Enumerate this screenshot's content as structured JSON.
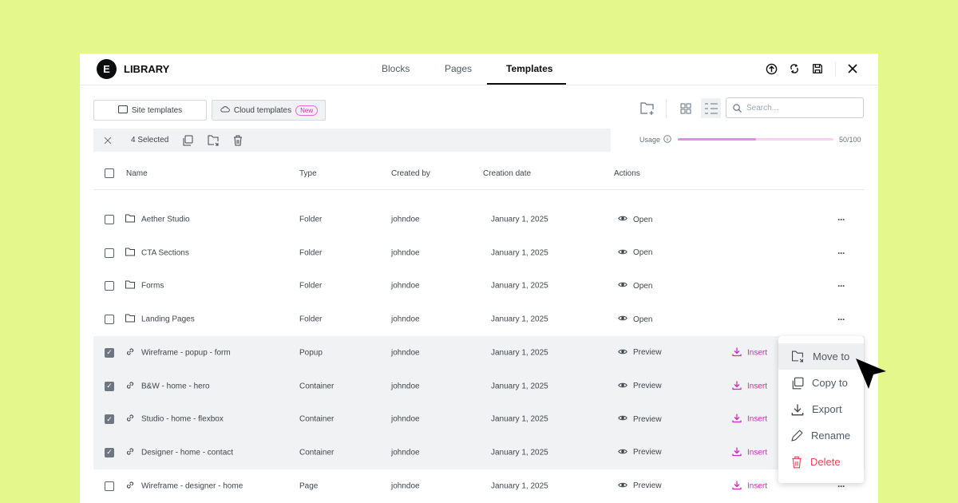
{
  "header": {
    "title": "LIBRARY",
    "tabs": [
      {
        "label": "Blocks"
      },
      {
        "label": "Pages"
      },
      {
        "label": "Templates",
        "active": true
      }
    ],
    "icons": [
      "upload-icon",
      "sync-icon",
      "save-icon",
      "close-icon"
    ]
  },
  "filters": {
    "site_templates": "Site templates",
    "cloud_templates": "Cloud templates",
    "new_badge": "New"
  },
  "toolbar": {
    "search_placeholder": "Search...",
    "view": "list"
  },
  "selection": {
    "label": "4 Selected"
  },
  "usage": {
    "label": "Usage",
    "value": "50/100",
    "fraction": 0.5
  },
  "columns": [
    "Name",
    "Type",
    "Created by",
    "Creation date",
    "Actions"
  ],
  "rows": [
    {
      "name": "Aether Studio",
      "type": "Folder",
      "by": "johndoe",
      "date": "January 1, 2025",
      "action": "Open",
      "checked": false,
      "kind": "folder"
    },
    {
      "name": "CTA Sections",
      "type": "Folder",
      "by": "johndoe",
      "date": "January 1, 2025",
      "action": "Open",
      "checked": false,
      "kind": "folder"
    },
    {
      "name": "Forms",
      "type": "Folder",
      "by": "johndoe",
      "date": "January 1, 2025",
      "action": "Open",
      "checked": false,
      "kind": "folder"
    },
    {
      "name": "Landing Pages",
      "type": "Folder",
      "by": "johndoe",
      "date": "January 1, 2025",
      "action": "Open",
      "checked": false,
      "kind": "folder"
    },
    {
      "name": "Wireframe - popup - form",
      "type": "Popup",
      "by": "johndoe",
      "date": "January 1, 2025",
      "action": "Preview",
      "insert": "Insert",
      "checked": true,
      "kind": "link"
    },
    {
      "name": "B&W - home - hero",
      "type": "Container",
      "by": "johndoe",
      "date": "January 1, 2025",
      "action": "Preview",
      "insert": "Insert",
      "checked": true,
      "kind": "link"
    },
    {
      "name": "Studio - home - flexbox",
      "type": "Container",
      "by": "johndoe",
      "date": "January 1, 2025",
      "action": "Preview",
      "insert": "Insert",
      "checked": true,
      "kind": "link"
    },
    {
      "name": "Designer - home - contact",
      "type": "Container",
      "by": "johndoe",
      "date": "January 1, 2025",
      "action": "Preview",
      "insert": "Insert",
      "checked": true,
      "kind": "link"
    },
    {
      "name": "Wireframe - designer - home",
      "type": "Page",
      "by": "johndoe",
      "date": "January 1, 2025",
      "action": "Preview",
      "insert": "Insert",
      "checked": false,
      "kind": "link"
    }
  ],
  "context_menu": {
    "items": [
      {
        "label": "Move to",
        "icon": "move-folder-icon",
        "highlighted": true
      },
      {
        "label": "Copy to",
        "icon": "copy-icon"
      },
      {
        "label": "Export",
        "icon": "export-icon"
      },
      {
        "label": "Rename",
        "icon": "pencil-icon"
      },
      {
        "label": "Delete",
        "icon": "trash-icon",
        "danger": true
      }
    ]
  },
  "colors": {
    "background": "#e3f78c",
    "accent": "#c92cb6",
    "danger": "#e0475a"
  }
}
